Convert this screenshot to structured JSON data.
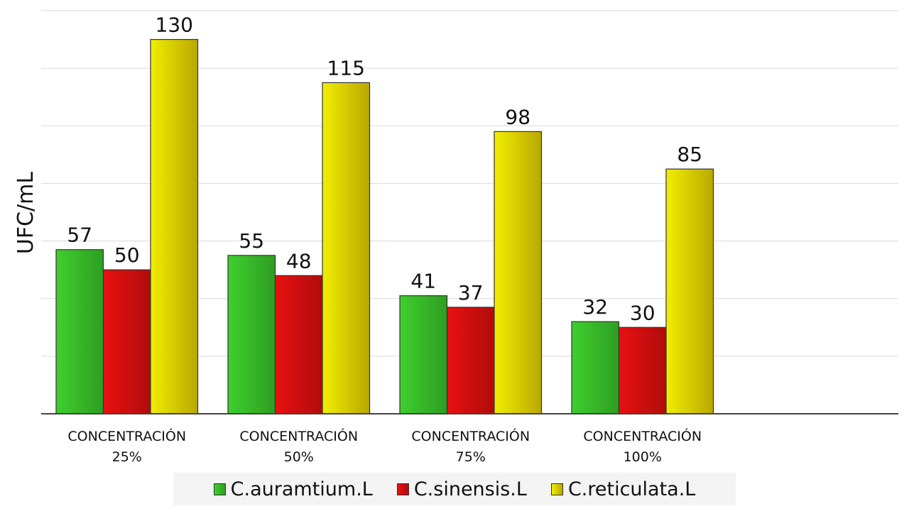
{
  "chart_data": {
    "type": "bar",
    "title": "",
    "ylabel": "UFC/mL",
    "xlabel": "",
    "categories": [
      [
        "CONCENTRACIÓN",
        "25%"
      ],
      [
        "CONCENTRACIÓN",
        "50%"
      ],
      [
        "CONCENTRACIÓN",
        "75%"
      ],
      [
        "CONCENTRACIÓN",
        "100%"
      ]
    ],
    "series": [
      {
        "name": "C.auramtium.L",
        "values": [
          57,
          55,
          41,
          32
        ],
        "color": "#3fcf2e",
        "color_dark": "#2e9e22"
      },
      {
        "name": "C.sinensis.L",
        "values": [
          50,
          48,
          37,
          30
        ],
        "color": "#e81010",
        "color_dark": "#b00c0c"
      },
      {
        "name": "C.reticulata.L",
        "values": [
          130,
          115,
          98,
          85
        ],
        "color": "#f2ee00",
        "color_dark": "#b8a800"
      }
    ],
    "ylim": [
      0,
      140
    ],
    "grid": true,
    "legend_position": "bottom",
    "data_labels": true
  }
}
